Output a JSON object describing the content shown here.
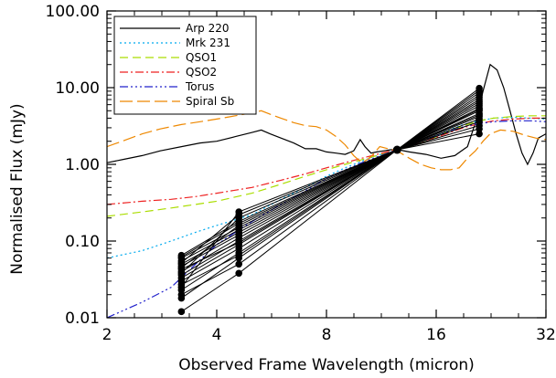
{
  "chart_data": {
    "type": "line",
    "title": "",
    "xlabel": "Observed Frame Wavelength (micron)",
    "ylabel": "Normalised Flux (mJy)",
    "xscale": "log",
    "yscale": "log",
    "xlim": [
      2,
      32
    ],
    "ylim": [
      0.01,
      100
    ],
    "xticks": [
      {
        "value": 2,
        "label": "2"
      },
      {
        "value": 4,
        "label": "4"
      },
      {
        "value": 8,
        "label": "8"
      },
      {
        "value": 16,
        "label": "16"
      },
      {
        "value": 32,
        "label": "32"
      }
    ],
    "yticks": [
      {
        "value": 0.01,
        "label": "0.01"
      },
      {
        "value": 0.1,
        "label": "0.10"
      },
      {
        "value": 1,
        "label": "1.00"
      },
      {
        "value": 10,
        "label": "10.00"
      },
      {
        "value": 100,
        "label": "100.00"
      }
    ],
    "legend_position": "top-left",
    "templates": [
      {
        "name": "Arp 220",
        "color": "#000000",
        "dash": "",
        "points": [
          [
            2,
            1.05
          ],
          [
            2.2,
            1.15
          ],
          [
            2.5,
            1.3
          ],
          [
            2.8,
            1.5
          ],
          [
            3.2,
            1.7
          ],
          [
            3.6,
            1.9
          ],
          [
            4,
            2.0
          ],
          [
            4.5,
            2.3
          ],
          [
            5,
            2.6
          ],
          [
            5.3,
            2.8
          ],
          [
            5.6,
            2.5
          ],
          [
            6,
            2.2
          ],
          [
            6.5,
            1.9
          ],
          [
            7,
            1.6
          ],
          [
            7.5,
            1.6
          ],
          [
            8,
            1.45
          ],
          [
            8.5,
            1.4
          ],
          [
            9,
            1.35
          ],
          [
            9.5,
            1.5
          ],
          [
            9.9,
            2.1
          ],
          [
            10.2,
            1.7
          ],
          [
            10.6,
            1.4
          ],
          [
            11,
            1.45
          ],
          [
            11.5,
            1.5
          ],
          [
            12,
            1.55
          ],
          [
            12.6,
            1.55
          ],
          [
            13.5,
            1.45
          ],
          [
            15,
            1.35
          ],
          [
            16.5,
            1.2
          ],
          [
            18,
            1.3
          ],
          [
            19.5,
            1.7
          ],
          [
            20.5,
            3.5
          ],
          [
            21.5,
            9
          ],
          [
            22.5,
            20
          ],
          [
            23.5,
            17
          ],
          [
            24.5,
            10
          ],
          [
            25.5,
            5
          ],
          [
            26.5,
            2.5
          ],
          [
            27.5,
            1.4
          ],
          [
            28.5,
            1.0
          ],
          [
            29.5,
            1.4
          ],
          [
            30.5,
            2.2
          ],
          [
            32,
            2.5
          ]
        ]
      },
      {
        "name": "Mrk 231",
        "color": "#00aaee",
        "dash": "2,3",
        "points": [
          [
            2,
            0.06
          ],
          [
            2.5,
            0.075
          ],
          [
            3,
            0.1
          ],
          [
            3.5,
            0.13
          ],
          [
            4,
            0.16
          ],
          [
            5,
            0.22
          ],
          [
            6,
            0.35
          ],
          [
            7,
            0.5
          ],
          [
            8,
            0.7
          ],
          [
            9,
            0.9
          ],
          [
            10,
            1.1
          ],
          [
            11,
            1.3
          ],
          [
            12,
            1.5
          ],
          [
            13,
            1.7
          ],
          [
            15,
            2.1
          ],
          [
            17,
            2.7
          ],
          [
            19,
            3.3
          ],
          [
            21,
            3.7
          ],
          [
            23,
            4.0
          ],
          [
            26,
            4.1
          ],
          [
            29,
            4.0
          ],
          [
            32,
            3.9
          ]
        ]
      },
      {
        "name": "QSO1",
        "color": "#aadd00",
        "dash": "9,5",
        "points": [
          [
            2,
            0.21
          ],
          [
            2.5,
            0.24
          ],
          [
            3,
            0.27
          ],
          [
            3.5,
            0.3
          ],
          [
            4,
            0.33
          ],
          [
            5,
            0.42
          ],
          [
            6,
            0.55
          ],
          [
            7,
            0.7
          ],
          [
            8,
            0.85
          ],
          [
            9,
            1.0
          ],
          [
            10,
            1.15
          ],
          [
            11,
            1.3
          ],
          [
            12,
            1.45
          ],
          [
            13,
            1.6
          ],
          [
            15,
            2.0
          ],
          [
            17,
            2.6
          ],
          [
            19,
            3.2
          ],
          [
            21,
            3.7
          ],
          [
            23,
            4.0
          ],
          [
            26,
            4.2
          ],
          [
            29,
            4.3
          ],
          [
            32,
            4.3
          ]
        ]
      },
      {
        "name": "QSO2",
        "color": "#ee2222",
        "dash": "9,3,2,3",
        "points": [
          [
            2,
            0.3
          ],
          [
            2.5,
            0.33
          ],
          [
            3,
            0.35
          ],
          [
            3.5,
            0.38
          ],
          [
            4,
            0.42
          ],
          [
            5,
            0.5
          ],
          [
            6,
            0.62
          ],
          [
            7,
            0.75
          ],
          [
            8,
            0.9
          ],
          [
            9,
            1.05
          ],
          [
            10,
            1.2
          ],
          [
            11,
            1.35
          ],
          [
            12,
            1.5
          ],
          [
            13,
            1.65
          ],
          [
            15,
            2.0
          ],
          [
            17,
            2.5
          ],
          [
            19,
            3.0
          ],
          [
            21,
            3.4
          ],
          [
            23,
            3.7
          ],
          [
            26,
            3.9
          ],
          [
            29,
            4.0
          ],
          [
            32,
            4.0
          ]
        ]
      },
      {
        "name": "Torus",
        "color": "#2222cc",
        "dash": "9,3,2,3,2,3,2,3",
        "points": [
          [
            2,
            0.01
          ],
          [
            2.5,
            0.016
          ],
          [
            3,
            0.025
          ],
          [
            3.5,
            0.05
          ],
          [
            4,
            0.09
          ],
          [
            4.5,
            0.13
          ],
          [
            5,
            0.18
          ],
          [
            6,
            0.3
          ],
          [
            7,
            0.45
          ],
          [
            8,
            0.65
          ],
          [
            9,
            0.85
          ],
          [
            10,
            1.05
          ],
          [
            11,
            1.25
          ],
          [
            12,
            1.45
          ],
          [
            13,
            1.65
          ],
          [
            15,
            2.1
          ],
          [
            17,
            2.6
          ],
          [
            19,
            3.1
          ],
          [
            21,
            3.4
          ],
          [
            23,
            3.6
          ],
          [
            26,
            3.7
          ],
          [
            29,
            3.7
          ],
          [
            32,
            3.6
          ]
        ]
      },
      {
        "name": "Spiral Sb",
        "color": "#ee8800",
        "dash": "14,5",
        "points": [
          [
            2,
            1.7
          ],
          [
            2.2,
            2.0
          ],
          [
            2.5,
            2.5
          ],
          [
            2.8,
            2.9
          ],
          [
            3.2,
            3.3
          ],
          [
            3.6,
            3.6
          ],
          [
            4,
            3.9
          ],
          [
            4.5,
            4.3
          ],
          [
            5,
            4.7
          ],
          [
            5.3,
            5.0
          ],
          [
            5.6,
            4.5
          ],
          [
            6,
            4.0
          ],
          [
            6.5,
            3.5
          ],
          [
            7,
            3.2
          ],
          [
            7.5,
            3.1
          ],
          [
            8,
            2.8
          ],
          [
            8.5,
            2.3
          ],
          [
            9,
            1.8
          ],
          [
            9.5,
            1.3
          ],
          [
            10,
            1.05
          ],
          [
            10.5,
            1.2
          ],
          [
            11.2,
            1.7
          ],
          [
            11.8,
            1.6
          ],
          [
            12.5,
            1.5
          ],
          [
            13.5,
            1.2
          ],
          [
            14.5,
            1.0
          ],
          [
            15.5,
            0.9
          ],
          [
            16.5,
            0.85
          ],
          [
            17.5,
            0.85
          ],
          [
            18.5,
            0.9
          ],
          [
            19.5,
            1.2
          ],
          [
            20.5,
            1.5
          ],
          [
            21.5,
            2.0
          ],
          [
            22.5,
            2.5
          ],
          [
            24,
            2.8
          ],
          [
            26,
            2.7
          ],
          [
            28,
            2.4
          ],
          [
            30,
            2.2
          ],
          [
            32,
            2.1
          ]
        ]
      }
    ],
    "pivot": {
      "x": 12.5,
      "y": 1.55
    },
    "sources": [
      {
        "f1": 0.012,
        "f2": 0.038,
        "f4": 2.5
      },
      {
        "f1": 0.018,
        "f2": 0.06,
        "f4": 2.9
      },
      {
        "f1": 0.02,
        "f2": 0.05,
        "f4": 3.2
      },
      {
        "f1": 0.023,
        "f2": 0.07,
        "f4": 3.6
      },
      {
        "f1": 0.027,
        "f2": 0.065,
        "f4": 3.9
      },
      {
        "f1": 0.03,
        "f2": 0.08,
        "f4": 4.2
      },
      {
        "f1": 0.033,
        "f2": 0.09,
        "f4": 4.6
      },
      {
        "f1": 0.036,
        "f2": 0.1,
        "f4": 5.0
      },
      {
        "f1": 0.04,
        "f2": 0.11,
        "f4": 5.4
      },
      {
        "f1": 0.043,
        "f2": 0.095,
        "f4": 5.8
      },
      {
        "f1": 0.047,
        "f2": 0.12,
        "f4": 6.2
      },
      {
        "f1": 0.05,
        "f2": 0.13,
        "f4": 6.6
      },
      {
        "f1": 0.055,
        "f2": 0.14,
        "f4": 7.0
      },
      {
        "f1": 0.06,
        "f2": 0.15,
        "f4": 7.5
      },
      {
        "f1": 0.062,
        "f2": 0.17,
        "f4": 8.0
      },
      {
        "f1": 0.065,
        "f2": 0.18,
        "f4": 8.6
      },
      {
        "f1": 0.038,
        "f2": 0.2,
        "f4": 9.2
      },
      {
        "f1": 0.052,
        "f2": 0.22,
        "f4": 9.8
      },
      {
        "f1": 0.025,
        "f2": 0.24,
        "f4": 4.4
      },
      {
        "f1": 0.045,
        "f2": 0.16,
        "f4": 5.2
      }
    ],
    "source_wavelengths": {
      "w1": 3.2,
      "w2": 4.6,
      "w4": 21.0
    }
  }
}
